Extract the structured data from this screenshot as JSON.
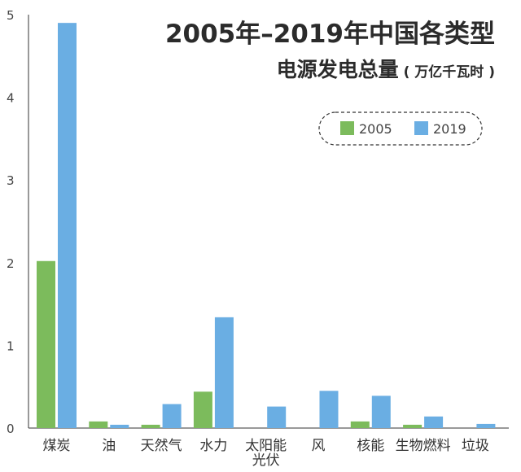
{
  "chart_data": {
    "type": "bar",
    "title": "2005年–2019年中国各类型",
    "subtitle": "电源发电总量",
    "unit": "( 万亿千瓦时 )",
    "categories": [
      "煤炭",
      "油",
      "天然气",
      "水力",
      "太阳能光伏",
      "风",
      "核能",
      "生物燃料",
      "垃圾"
    ],
    "category_lines": [
      [
        "煤炭"
      ],
      [
        "油"
      ],
      [
        "天然气"
      ],
      [
        "水力"
      ],
      [
        "太阳能",
        "光伏"
      ],
      [
        "风"
      ],
      [
        "核能"
      ],
      [
        "生物燃料"
      ],
      [
        "垃圾"
      ]
    ],
    "series": [
      {
        "name": "2005",
        "color": "#7cbb5c",
        "values": [
          2.02,
          0.08,
          0.04,
          0.44,
          0.0,
          0.0,
          0.08,
          0.04,
          0.0
        ]
      },
      {
        "name": "2019",
        "color": "#6aaee3",
        "values": [
          4.9,
          0.04,
          0.29,
          1.34,
          0.26,
          0.45,
          0.39,
          0.14,
          0.05
        ]
      }
    ],
    "y_ticks": [
      "0",
      "1",
      "2",
      "3",
      "4",
      "5"
    ],
    "ylim": [
      0,
      5
    ],
    "grid": false,
    "legend_position": "top-right"
  }
}
